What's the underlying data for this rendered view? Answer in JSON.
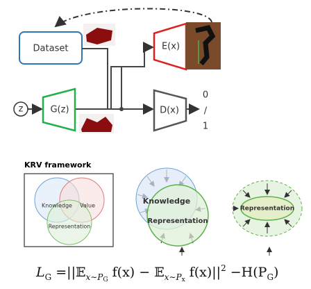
{
  "top": {
    "dataset": "Dataset",
    "encoder": "E(x)",
    "noise": "z",
    "generator": "G(z)",
    "discriminator": "D(x)",
    "output": [
      "0",
      "/",
      "1"
    ]
  },
  "krv": {
    "title": "KRV framework",
    "venn": {
      "knowledge": "Knowledge",
      "value": "Value",
      "representation": "Representation"
    },
    "middle": {
      "knowledge": "Knowledge",
      "representation": "Representation"
    },
    "right": {
      "representation": "Representation"
    }
  },
  "formula": {
    "parts": [
      "L",
      "G",
      " =||𝔼",
      "x∼P",
      "G",
      " f(x) − 𝔼",
      "x∼P",
      "x",
      " f(x)||",
      "2",
      " −H(P",
      "G",
      ")"
    ]
  }
}
